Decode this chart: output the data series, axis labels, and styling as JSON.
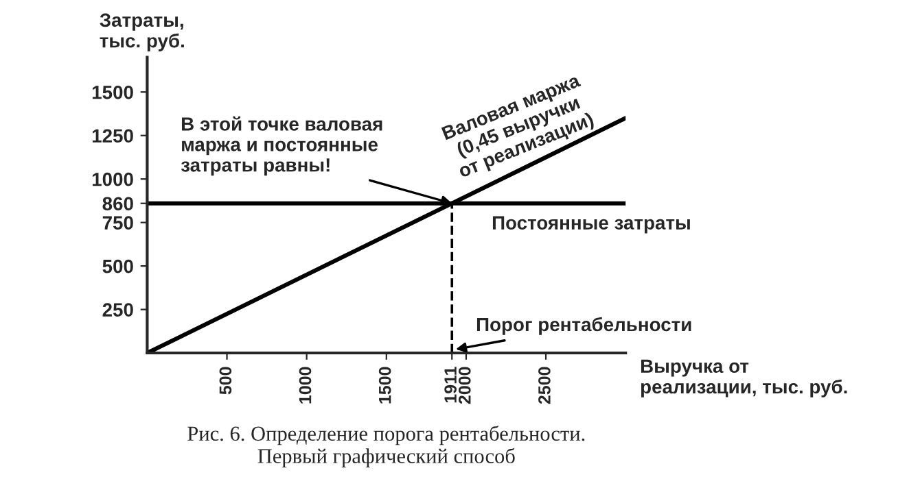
{
  "chart_data": {
    "type": "line",
    "xlabel": "Выручка от\nреализации, тыс. руб.",
    "ylabel": "Затраты,\nтыс. руб.",
    "series": [
      {
        "name": "Валовая маржа\n(0,45 выручки\nот реализации)",
        "color": "#000000",
        "x": [
          0,
          3000
        ],
        "values": [
          0,
          1350
        ]
      },
      {
        "name": "Постоянные затраты",
        "color": "#000000",
        "x": [
          0,
          3000
        ],
        "values": [
          860,
          860
        ]
      },
      {
        "name": "Порог рентабельности",
        "color": "#000000",
        "x": [
          1911,
          1911
        ],
        "values": [
          0,
          860
        ],
        "line_style": "dashed"
      }
    ],
    "xlim": [
      0,
      3000
    ],
    "ylim": [
      0,
      1700
    ],
    "xticks": [
      500,
      1000,
      1500,
      1911,
      2000,
      2500
    ],
    "yticks": [
      250,
      500,
      750,
      860,
      1000,
      1250,
      1500
    ],
    "annotations": [
      "В этой точке валовая\nмаржа и постоянные\nзатраты равны!",
      "Рис. 6. Определение порога рентабельности.\nПервый графический способ"
    ],
    "grid": false,
    "legend": false,
    "marker": "none",
    "line_style": "solid"
  }
}
